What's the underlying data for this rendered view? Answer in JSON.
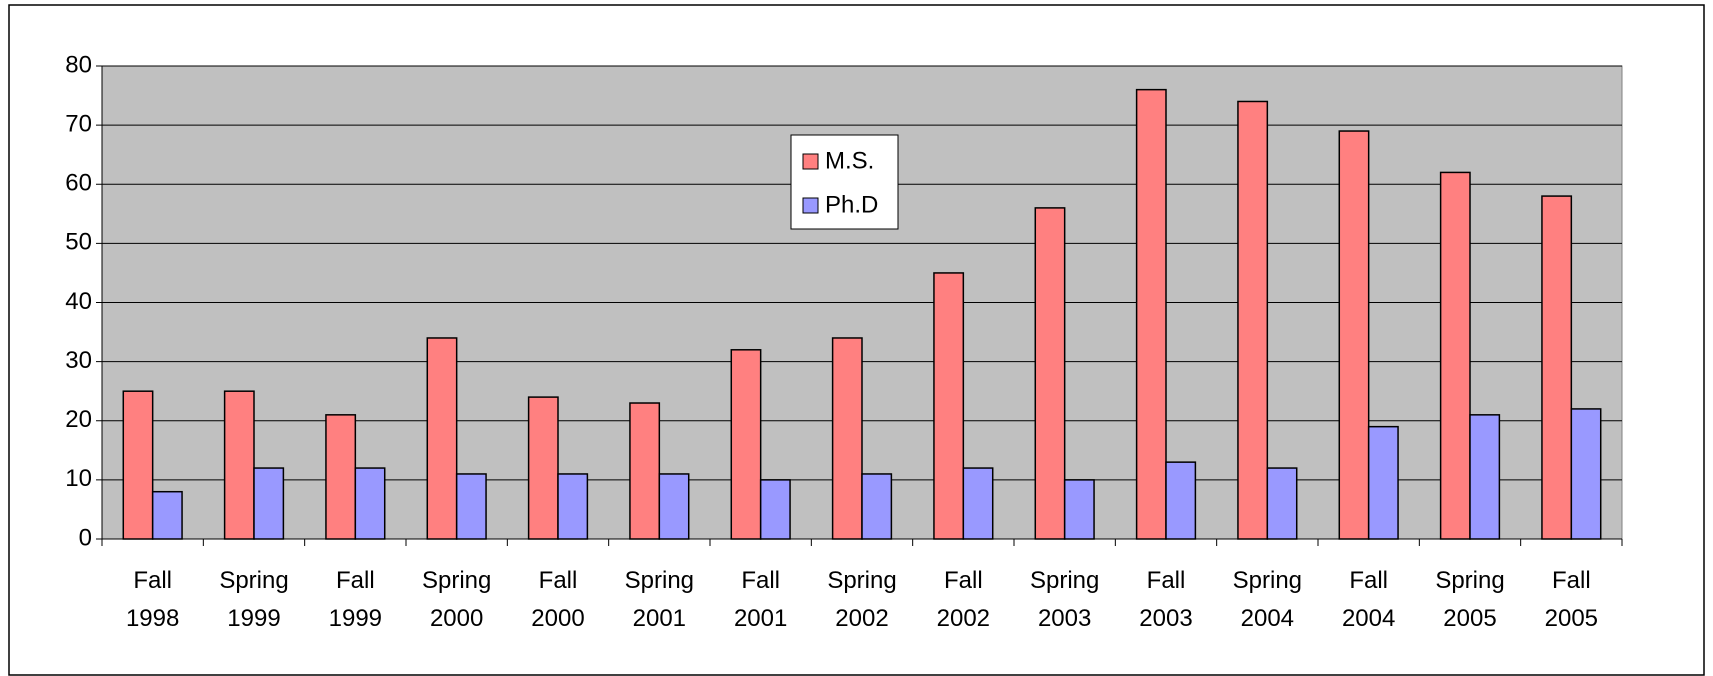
{
  "chart_data": {
    "type": "bar",
    "categories": [
      "Fall 1998",
      "Spring 1999",
      "Fall 1999",
      "Spring 2000",
      "Fall 2000",
      "Spring 2001",
      "Fall 2001",
      "Spring 2002",
      "Fall 2002",
      "Spring 2003",
      "Fall 2003",
      "Spring 2004",
      "Fall 2004",
      "Spring 2005",
      "Fall 2005"
    ],
    "series": [
      {
        "name": "M.S.",
        "color": "#ff8080",
        "values": [
          25,
          25,
          21,
          34,
          24,
          23,
          32,
          34,
          45,
          56,
          76,
          74,
          69,
          62,
          58
        ]
      },
      {
        "name": "Ph.D",
        "color": "#9999ff",
        "values": [
          8,
          12,
          12,
          11,
          11,
          11,
          10,
          11,
          12,
          10,
          13,
          12,
          19,
          21,
          22
        ]
      }
    ],
    "ylim": [
      0,
      80
    ],
    "yticks": [
      0,
      10,
      20,
      30,
      40,
      50,
      60,
      70,
      80
    ],
    "grid": true
  }
}
